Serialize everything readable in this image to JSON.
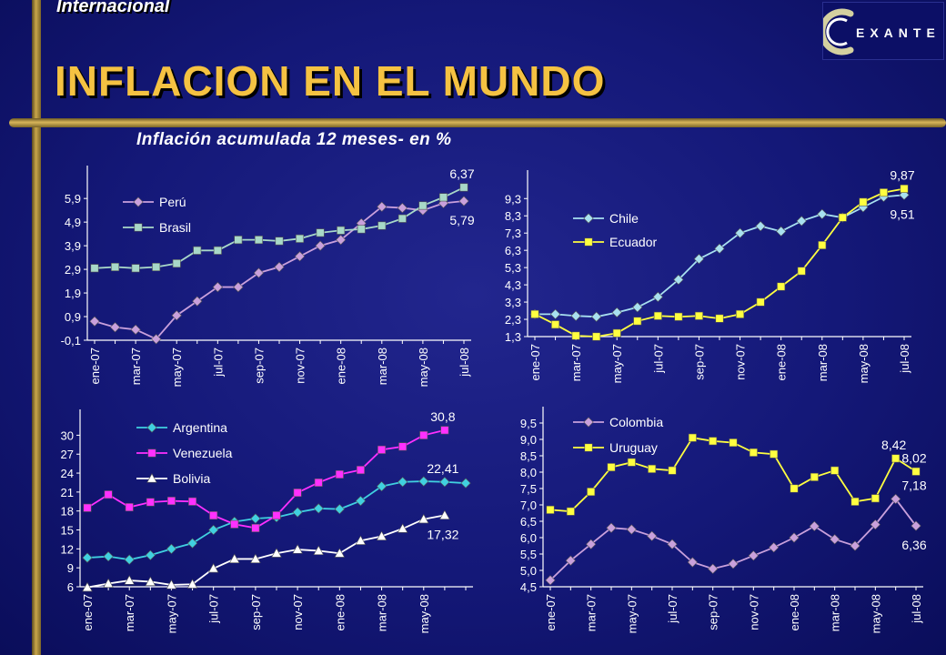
{
  "header": {
    "section": "Internacional",
    "title": "INFLACION EN EL MUNDO",
    "subtitle": "Inflación acumulada 12 meses- en %",
    "logo_text": "EXANTE"
  },
  "colors": {
    "background": "#141878",
    "accent": "#f5c242",
    "gold_bar": "#c9a64a",
    "axis": "#ffffff"
  },
  "chart_data": [
    {
      "id": "c1",
      "type": "line",
      "x": [
        "ene-07",
        "feb-07",
        "mar-07",
        "abr-07",
        "may-07",
        "jun-07",
        "jul-07",
        "ago-07",
        "sep-07",
        "oct-07",
        "nov-07",
        "dic-07",
        "ene-08",
        "feb-08",
        "mar-08",
        "abr-08",
        "may-08",
        "jun-08",
        "jul-08"
      ],
      "x_tick_labels": [
        "ene-07",
        "mar-07",
        "may-07",
        "jul-07",
        "sep-07",
        "nov-07",
        "ene-08",
        "mar-08",
        "may-08",
        "jul-08"
      ],
      "y_ticks": [
        "-0,1",
        "0,9",
        "1,9",
        "2,9",
        "3,9",
        "4,9",
        "5,9"
      ],
      "ylim": [
        -0.1,
        6.6
      ],
      "legend_position": "top-left",
      "series": [
        {
          "name": "Perú",
          "color": "#c9a0dc",
          "marker": "diamond",
          "values": [
            0.7,
            0.45,
            0.35,
            -0.05,
            0.95,
            1.55,
            2.15,
            2.15,
            2.75,
            3.0,
            3.45,
            3.9,
            4.15,
            4.85,
            5.55,
            5.5,
            5.4,
            5.7,
            5.79
          ]
        },
        {
          "name": "Brasil",
          "color": "#a8d8c8",
          "marker": "square",
          "values": [
            2.95,
            3.0,
            2.95,
            3.0,
            3.15,
            3.7,
            3.7,
            4.15,
            4.15,
            4.1,
            4.2,
            4.45,
            4.55,
            4.6,
            4.75,
            5.05,
            5.6,
            5.95,
            6.37
          ]
        }
      ],
      "annotations": [
        {
          "text": "6,37",
          "x": "jul-08",
          "y": 6.37,
          "pos": "above"
        },
        {
          "text": "5,79",
          "x": "jul-08",
          "y": 5.79,
          "pos": "below"
        }
      ]
    },
    {
      "id": "c2",
      "type": "line",
      "x": [
        "ene-07",
        "feb-07",
        "mar-07",
        "abr-07",
        "may-07",
        "jun-07",
        "jul-07",
        "ago-07",
        "sep-07",
        "oct-07",
        "nov-07",
        "dic-07",
        "ene-08",
        "feb-08",
        "mar-08",
        "abr-08",
        "may-08",
        "jun-08",
        "jul-08"
      ],
      "x_tick_labels": [
        "ene-07",
        "mar-07",
        "may-07",
        "jul-07",
        "sep-07",
        "nov-07",
        "ene-08",
        "mar-08",
        "may-08",
        "jul-08"
      ],
      "y_ticks": [
        "1,3",
        "2,3",
        "3,3",
        "4,3",
        "5,3",
        "6,3",
        "7,3",
        "8,3",
        "9,3"
      ],
      "ylim": [
        1.3,
        10.0
      ],
      "legend_position": "middle-left",
      "series": [
        {
          "name": "Chile",
          "color": "#a8e0f0",
          "marker": "diamond",
          "values": [
            2.6,
            2.6,
            2.5,
            2.45,
            2.7,
            3.0,
            3.6,
            4.6,
            5.8,
            6.4,
            7.3,
            7.7,
            7.4,
            8.0,
            8.4,
            8.2,
            8.8,
            9.4,
            9.51
          ]
        },
        {
          "name": "Ecuador",
          "color": "#ffff40",
          "marker": "square",
          "values": [
            2.6,
            2.0,
            1.35,
            1.3,
            1.5,
            2.2,
            2.5,
            2.45,
            2.5,
            2.35,
            2.6,
            3.3,
            4.2,
            5.1,
            6.6,
            8.2,
            9.1,
            9.65,
            9.87
          ]
        }
      ],
      "annotations": [
        {
          "text": "9,87",
          "x": "jul-08",
          "y": 9.87,
          "pos": "above"
        },
        {
          "text": "9,51",
          "x": "jul-08",
          "y": 9.51,
          "pos": "below"
        }
      ]
    },
    {
      "id": "c3",
      "type": "line",
      "x": [
        "ene-07",
        "feb-07",
        "mar-07",
        "abr-07",
        "may-07",
        "jun-07",
        "jul-07",
        "ago-07",
        "sep-07",
        "oct-07",
        "nov-07",
        "dic-07",
        "ene-08",
        "feb-08",
        "mar-08",
        "abr-08",
        "may-08",
        "jun-08",
        "jul-08"
      ],
      "x_tick_labels": [
        "ene-07",
        "mar-07",
        "may-07",
        "jul-07",
        "sep-07",
        "nov-07",
        "ene-08",
        "mar-08",
        "may-08"
      ],
      "y_ticks": [
        "6",
        "9",
        "12",
        "15",
        "18",
        "21",
        "24",
        "27",
        "30"
      ],
      "ylim": [
        6,
        31.5
      ],
      "legend_position": "top-left",
      "series": [
        {
          "name": "Argentina",
          "color": "#40d0e0",
          "marker": "diamond",
          "values": [
            10.6,
            10.8,
            10.3,
            11.0,
            12.0,
            12.9,
            15.0,
            16.3,
            16.8,
            17.0,
            17.8,
            18.4,
            18.3,
            19.6,
            21.9,
            22.6,
            22.7,
            22.6,
            22.41
          ]
        },
        {
          "name": "Venezuela",
          "color": "#ff30ff",
          "marker": "square",
          "values": [
            18.5,
            20.6,
            18.6,
            19.4,
            19.6,
            19.5,
            17.3,
            15.9,
            15.3,
            17.3,
            20.9,
            22.5,
            23.8,
            24.5,
            27.7,
            28.2,
            30.0,
            30.8,
            null
          ]
        },
        {
          "name": "Bolivia",
          "color": "#ffffff",
          "marker": "triangle",
          "values": [
            5.9,
            6.5,
            7.0,
            6.8,
            6.3,
            6.4,
            8.9,
            10.4,
            10.4,
            11.3,
            11.9,
            11.7,
            11.3,
            13.3,
            14.0,
            15.2,
            16.7,
            17.32,
            null
          ]
        }
      ],
      "annotations": [
        {
          "text": "30,8",
          "x": "jun-08",
          "y": 30.8,
          "pos": "above"
        },
        {
          "text": "22,41",
          "x": "jun-08",
          "y": 22.6,
          "pos": "above"
        },
        {
          "text": "17,32",
          "x": "jun-08",
          "y": 17.32,
          "pos": "below"
        }
      ]
    },
    {
      "id": "c4",
      "type": "line",
      "x": [
        "ene-07",
        "feb-07",
        "mar-07",
        "abr-07",
        "may-07",
        "jun-07",
        "jul-07",
        "ago-07",
        "sep-07",
        "oct-07",
        "nov-07",
        "dic-07",
        "ene-08",
        "feb-08",
        "mar-08",
        "abr-08",
        "may-08",
        "jun-08",
        "jul-08"
      ],
      "x_tick_labels": [
        "ene-07",
        "mar-07",
        "may-07",
        "jul-07",
        "sep-07",
        "nov-07",
        "ene-08",
        "mar-08",
        "may-08",
        "jul-08"
      ],
      "y_ticks": [
        "4,5",
        "5,0",
        "5,5",
        "6,0",
        "6,5",
        "7,0",
        "7,5",
        "8,0",
        "8,5",
        "9,0",
        "9,5"
      ],
      "ylim": [
        4.5,
        9.5
      ],
      "legend_position": "top-left",
      "series": [
        {
          "name": "Colombia",
          "color": "#c9a0dc",
          "marker": "diamond",
          "values": [
            4.7,
            5.3,
            5.8,
            6.3,
            6.25,
            6.05,
            5.8,
            5.25,
            5.05,
            5.2,
            5.45,
            5.7,
            6.0,
            6.35,
            5.95,
            5.75,
            6.4,
            7.18,
            6.36
          ]
        },
        {
          "name": "Uruguay",
          "color": "#ffff40",
          "marker": "square",
          "values": [
            6.85,
            6.8,
            7.4,
            8.15,
            8.3,
            8.1,
            8.05,
            9.05,
            8.95,
            8.9,
            8.6,
            8.55,
            7.5,
            7.85,
            8.05,
            7.1,
            7.2,
            8.42,
            8.02
          ]
        }
      ],
      "annotations": [
        {
          "text": "8,42",
          "x": "jun-08",
          "y": 8.42,
          "pos": "above"
        },
        {
          "text": "8,02",
          "x": "jul-08",
          "y": 8.02,
          "pos": "above"
        },
        {
          "text": "7,18",
          "x": "jul-08",
          "y": 7.18,
          "pos": "above"
        },
        {
          "text": "6,36",
          "x": "jul-08",
          "y": 6.36,
          "pos": "below"
        }
      ]
    }
  ]
}
